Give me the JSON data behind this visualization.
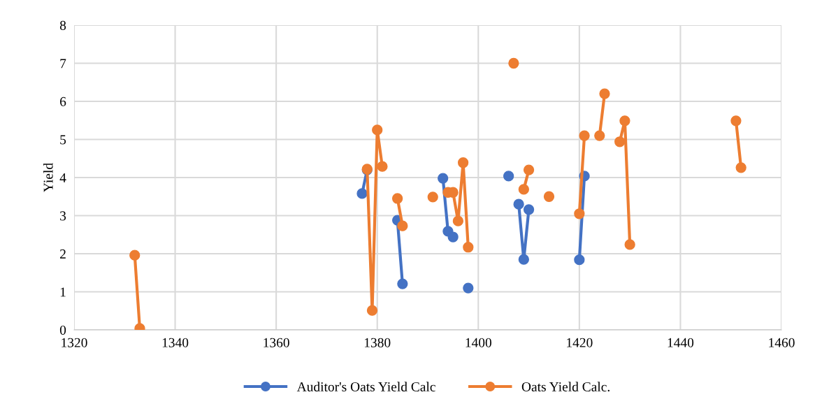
{
  "chart_data": {
    "type": "line",
    "ylabel": "Yield",
    "xlim": [
      1320,
      1460
    ],
    "xticks": [
      1320,
      1340,
      1360,
      1380,
      1400,
      1420,
      1440,
      1460
    ],
    "ylim": [
      0,
      8
    ],
    "yticks": [
      0,
      1,
      2,
      3,
      4,
      5,
      6,
      7,
      8
    ],
    "grid": true,
    "legend": "bottom",
    "marker": "circle",
    "line_style": "solid",
    "series": [
      {
        "name": "Auditor's Oats Yield Calc",
        "color": "#4472c4",
        "x": [
          1377,
          1378,
          1379,
          1384,
          1385,
          1386,
          1393,
          1394,
          1395,
          1396,
          1398,
          1399,
          1406,
          1407,
          1408,
          1409,
          1410,
          1411,
          1420,
          1421
        ],
        "values": [
          3.58,
          4.2,
          null,
          2.88,
          1.21,
          null,
          3.98,
          2.59,
          2.44,
          null,
          1.1,
          null,
          4.04,
          null,
          3.3,
          1.85,
          3.16,
          null,
          1.84,
          4.04
        ]
      },
      {
        "name": "Oats Yield Calc.",
        "color": "#ed7d31",
        "x": [
          1332,
          1333,
          1334,
          1378,
          1379,
          1380,
          1381,
          1382,
          1384,
          1385,
          1386,
          1391,
          1392,
          1394,
          1395,
          1396,
          1397,
          1398,
          1399,
          1407,
          1408,
          1409,
          1410,
          1411,
          1414,
          1415,
          1420,
          1421,
          1422,
          1424,
          1425,
          1426,
          1428,
          1429,
          1430,
          1431,
          1451,
          1452
        ],
        "values": [
          1.96,
          0.04,
          null,
          4.22,
          0.51,
          5.25,
          4.29,
          null,
          3.45,
          2.73,
          null,
          3.49,
          null,
          3.61,
          3.61,
          2.86,
          4.39,
          2.17,
          null,
          7.0,
          null,
          3.69,
          4.2,
          null,
          3.5,
          null,
          3.05,
          5.1,
          null,
          5.1,
          6.2,
          null,
          4.94,
          5.49,
          2.24,
          null,
          5.49,
          4.26
        ]
      }
    ]
  }
}
